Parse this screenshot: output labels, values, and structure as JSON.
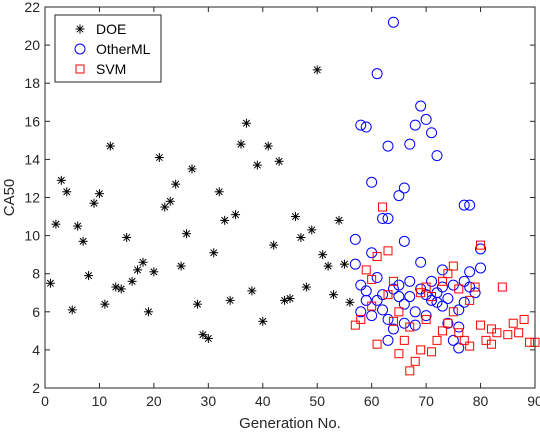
{
  "chart_data": {
    "type": "scatter",
    "xlabel": "Generation No.",
    "ylabel": "CA50",
    "xlim": [
      0,
      90
    ],
    "ylim": [
      2,
      22
    ],
    "xticks": [
      0,
      10,
      20,
      30,
      40,
      50,
      60,
      70,
      80,
      90
    ],
    "yticks": [
      2,
      4,
      6,
      8,
      10,
      12,
      14,
      16,
      18,
      20,
      22
    ],
    "xtick_labels": [
      "0",
      "10",
      "20",
      "30",
      "40",
      "50",
      "60",
      "70",
      "80",
      "90"
    ],
    "ytick_labels": [
      "2",
      "4",
      "6",
      "8",
      "10",
      "12",
      "14",
      "16",
      "18",
      "20",
      "22"
    ],
    "grid": false,
    "legend_position": "top-left",
    "series": [
      {
        "name": "DOE",
        "marker": "asterisk",
        "color": "#000000",
        "points": [
          [
            1,
            7.5
          ],
          [
            2,
            10.6
          ],
          [
            3,
            12.9
          ],
          [
            4,
            12.3
          ],
          [
            5,
            6.1
          ],
          [
            6,
            10.5
          ],
          [
            7,
            9.7
          ],
          [
            8,
            7.9
          ],
          [
            9,
            11.7
          ],
          [
            10,
            12.2
          ],
          [
            11,
            6.4
          ],
          [
            12,
            14.7
          ],
          [
            13,
            7.3
          ],
          [
            14,
            7.2
          ],
          [
            15,
            9.9
          ],
          [
            16,
            7.6
          ],
          [
            17,
            8.2
          ],
          [
            18,
            8.6
          ],
          [
            19,
            6.0
          ],
          [
            20,
            8.1
          ],
          [
            21,
            14.1
          ],
          [
            22,
            11.5
          ],
          [
            23,
            11.8
          ],
          [
            24,
            12.7
          ],
          [
            25,
            8.4
          ],
          [
            26,
            10.1
          ],
          [
            27,
            13.5
          ],
          [
            28,
            6.4
          ],
          [
            29,
            4.8
          ],
          [
            30,
            4.6
          ],
          [
            31,
            9.1
          ],
          [
            32,
            12.3
          ],
          [
            33,
            10.8
          ],
          [
            34,
            6.6
          ],
          [
            35,
            11.1
          ],
          [
            36,
            14.8
          ],
          [
            37,
            15.9
          ],
          [
            38,
            7.1
          ],
          [
            39,
            13.7
          ],
          [
            40,
            5.5
          ],
          [
            41,
            14.7
          ],
          [
            42,
            9.5
          ],
          [
            43,
            13.9
          ],
          [
            44,
            6.6
          ],
          [
            45,
            6.7
          ],
          [
            46,
            11.0
          ],
          [
            47,
            9.9
          ],
          [
            48,
            7.3
          ],
          [
            49,
            10.3
          ],
          [
            50,
            18.7
          ],
          [
            51,
            9.0
          ],
          [
            52,
            8.4
          ],
          [
            53,
            6.9
          ],
          [
            54,
            10.8
          ],
          [
            55,
            8.5
          ],
          [
            56,
            6.5
          ]
        ]
      },
      {
        "name": "OtherML",
        "marker": "circle",
        "color": "#0000ff",
        "points": [
          [
            57,
            9.8
          ],
          [
            57,
            8.5
          ],
          [
            58,
            15.8
          ],
          [
            59,
            15.7
          ],
          [
            58,
            7.4
          ],
          [
            59,
            6.6
          ],
          [
            60,
            12.8
          ],
          [
            60,
            9.1
          ],
          [
            61,
            18.5
          ],
          [
            61,
            6.6
          ],
          [
            62,
            10.9
          ],
          [
            63,
            10.9
          ],
          [
            63,
            14.7
          ],
          [
            64,
            21.2
          ],
          [
            65,
            12.1
          ],
          [
            66,
            12.5
          ],
          [
            66,
            9.7
          ],
          [
            67,
            14.8
          ],
          [
            68,
            15.8
          ],
          [
            69,
            16.8
          ],
          [
            70,
            16.1
          ],
          [
            71,
            15.4
          ],
          [
            72,
            14.2
          ],
          [
            73,
            8.2
          ],
          [
            77,
            11.6
          ],
          [
            78,
            11.6
          ],
          [
            80,
            9.3
          ],
          [
            80,
            8.3
          ],
          [
            60,
            5.8
          ],
          [
            61,
            7.8
          ],
          [
            62,
            6.1
          ],
          [
            63,
            4.5
          ],
          [
            64,
            5.1
          ],
          [
            65,
            6.8
          ],
          [
            66,
            5.4
          ],
          [
            67,
            7.6
          ],
          [
            68,
            5.3
          ],
          [
            69,
            8.6
          ],
          [
            70,
            6.9
          ],
          [
            71,
            6.6
          ],
          [
            72,
            7.0
          ],
          [
            73,
            6.3
          ],
          [
            74,
            5.4
          ],
          [
            75,
            7.4
          ],
          [
            76,
            4.1
          ],
          [
            77,
            6.5
          ],
          [
            78,
            7.3
          ],
          [
            75,
            4.5
          ],
          [
            76,
            6.1
          ],
          [
            77,
            7.6
          ],
          [
            74,
            6.7
          ],
          [
            72,
            6.5
          ],
          [
            70,
            5.8
          ],
          [
            69,
            7.2
          ],
          [
            67,
            6.8
          ],
          [
            65,
            7.4
          ],
          [
            63,
            5.6
          ],
          [
            62,
            6.9
          ],
          [
            59,
            7.1
          ],
          [
            58,
            6.0
          ],
          [
            64,
            7.2
          ],
          [
            66,
            6.4
          ],
          [
            68,
            6.0
          ],
          [
            71,
            7.6
          ],
          [
            73,
            7.3
          ],
          [
            78,
            8.1
          ],
          [
            79,
            7.0
          ],
          [
            76,
            5.2
          ]
        ]
      },
      {
        "name": "SVM",
        "marker": "square",
        "color": "#ff0000",
        "points": [
          [
            57,
            5.3
          ],
          [
            58,
            5.6
          ],
          [
            59,
            8.2
          ],
          [
            60,
            6.3
          ],
          [
            61,
            8.9
          ],
          [
            62,
            11.5
          ],
          [
            63,
            9.2
          ],
          [
            64,
            7.6
          ],
          [
            65,
            3.8
          ],
          [
            66,
            4.5
          ],
          [
            67,
            2.9
          ],
          [
            68,
            3.4
          ],
          [
            69,
            7.0
          ],
          [
            70,
            5.6
          ],
          [
            71,
            6.8
          ],
          [
            72,
            4.5
          ],
          [
            73,
            7.6
          ],
          [
            74,
            5.4
          ],
          [
            75,
            8.4
          ],
          [
            76,
            7.2
          ],
          [
            77,
            4.5
          ],
          [
            78,
            4.2
          ],
          [
            79,
            7.3
          ],
          [
            80,
            9.5
          ],
          [
            81,
            4.5
          ],
          [
            82,
            4.3
          ],
          [
            83,
            4.9
          ],
          [
            84,
            7.3
          ],
          [
            85,
            4.8
          ],
          [
            86,
            5.4
          ],
          [
            87,
            4.9
          ],
          [
            88,
            5.6
          ],
          [
            89,
            4.4
          ],
          [
            90,
            4.4
          ],
          [
            61,
            4.3
          ],
          [
            63,
            6.9
          ],
          [
            65,
            6.0
          ],
          [
            67,
            5.2
          ],
          [
            69,
            4.0
          ],
          [
            71,
            3.9
          ],
          [
            73,
            5.0
          ],
          [
            75,
            6.0
          ],
          [
            76,
            4.9
          ],
          [
            78,
            6.6
          ],
          [
            80,
            5.3
          ],
          [
            82,
            5.1
          ],
          [
            70,
            7.3
          ],
          [
            74,
            8.0
          ],
          [
            60,
            7.7
          ],
          [
            64,
            5.5
          ]
        ]
      }
    ]
  }
}
